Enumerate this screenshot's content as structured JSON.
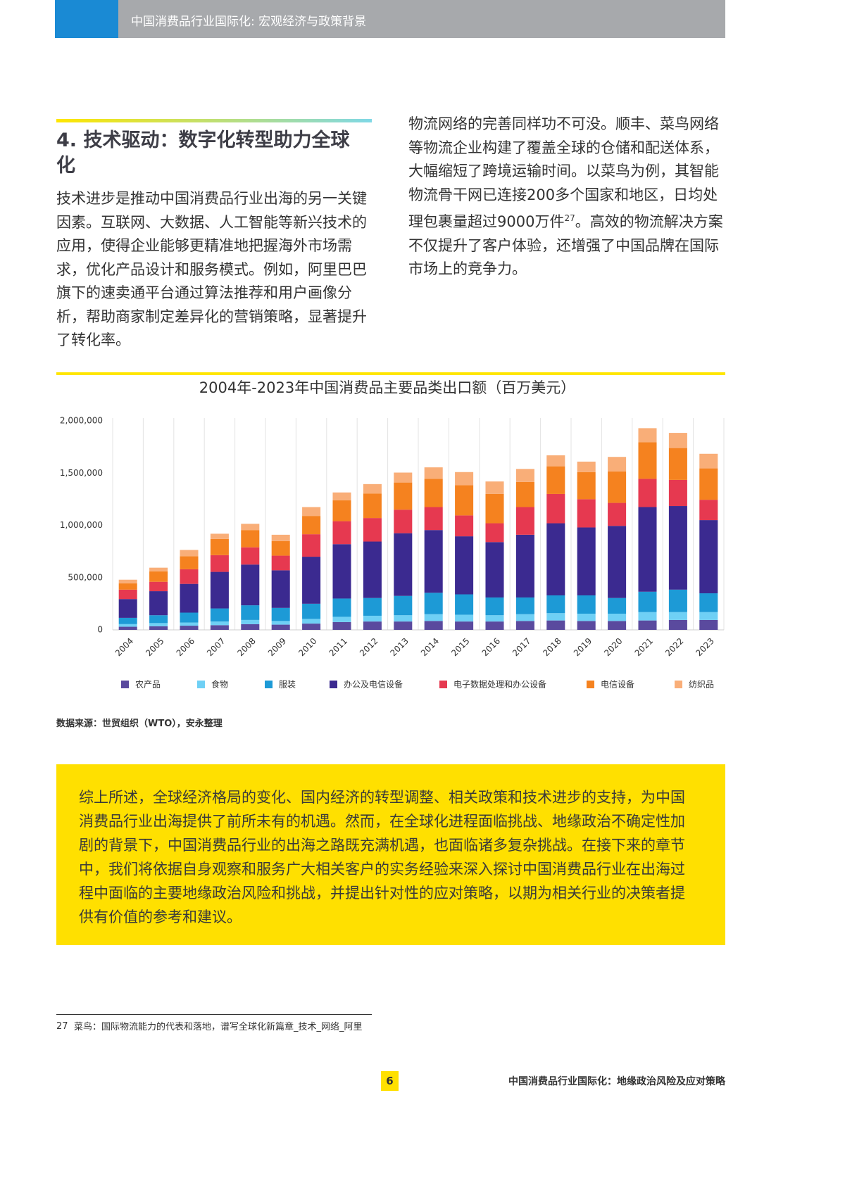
{
  "header": {
    "title": "中国消费品行业国际化: 宏观经济与政策背景"
  },
  "section": {
    "heading": "4. 技术驱动：数字化转型助力全球化",
    "left_paragraph": "技术进步是推动中国消费品行业出海的另一关键因素。互联网、大数据、人工智能等新兴技术的应用，使得企业能够更精准地把握海外市场需求，优化产品设计和服务模式。例如，阿里巴巴旗下的速卖通平台通过算法推荐和用户画像分析，帮助商家制定差异化的营销策略，显著提升了转化率。",
    "right_paragraph": {
      "before": "物流网络的完善同样功不可没。顺丰、菜鸟网络等物流企业构建了覆盖全球的仓储和配送体系，大幅缩短了跨境运输时间。以菜鸟为例，其智能物流骨干网已连接200多个国家和地区，日均处理包裹量超过9000万件",
      "footnote_ref": "27",
      "after": "。高效的物流解决方案不仅提升了客户体验，还增强了中国品牌在国际市场上的竞争力。"
    }
  },
  "chart_data": {
    "type": "stacked-bar",
    "title": "2004年-2023年中国消费品主要品类出口额（百万美元）",
    "categories": [
      "2004",
      "2005",
      "2006",
      "2007",
      "2008",
      "2009",
      "2010",
      "2011",
      "2012",
      "2013",
      "2014",
      "2015",
      "2016",
      "2017",
      "2018",
      "2019",
      "2020",
      "2021",
      "2022",
      "2023"
    ],
    "series": [
      {
        "name": "农产品",
        "color": "#5a4a9e",
        "values": [
          30000,
          35000,
          40000,
          45000,
          55000,
          50000,
          60000,
          75000,
          80000,
          80000,
          85000,
          80000,
          80000,
          85000,
          90000,
          85000,
          85000,
          90000,
          95000,
          95000
        ]
      },
      {
        "name": "食物",
        "color": "#6fd0f5",
        "values": [
          25000,
          30000,
          30000,
          35000,
          40000,
          35000,
          45000,
          50000,
          55000,
          60000,
          65000,
          65000,
          60000,
          65000,
          70000,
          70000,
          70000,
          80000,
          75000,
          75000
        ]
      },
      {
        "name": "服装",
        "color": "#1d9ad6",
        "values": [
          60000,
          75000,
          95000,
          125000,
          140000,
          125000,
          145000,
          175000,
          170000,
          185000,
          205000,
          195000,
          170000,
          160000,
          170000,
          175000,
          150000,
          195000,
          215000,
          180000
        ]
      },
      {
        "name": "办公及电信设备",
        "color": "#3b2a90",
        "values": [
          180000,
          230000,
          275000,
          350000,
          390000,
          360000,
          450000,
          520000,
          540000,
          600000,
          600000,
          555000,
          530000,
          600000,
          690000,
          650000,
          690000,
          810000,
          800000,
          700000
        ]
      },
      {
        "name": "电子数据处理和办公设备",
        "color": "#e63950",
        "values": [
          90000,
          90000,
          140000,
          160000,
          165000,
          140000,
          215000,
          220000,
          225000,
          225000,
          220000,
          200000,
          180000,
          265000,
          280000,
          270000,
          220000,
          270000,
          250000,
          195000
        ]
      },
      {
        "name": "电信设备",
        "color": "#f5821f",
        "values": [
          60000,
          100000,
          125000,
          155000,
          165000,
          140000,
          175000,
          200000,
          235000,
          260000,
          270000,
          290000,
          280000,
          240000,
          265000,
          260000,
          300000,
          350000,
          305000,
          300000
        ]
      },
      {
        "name": "纺织品",
        "color": "#f9ae78",
        "values": [
          35000,
          35000,
          60000,
          50000,
          60000,
          60000,
          85000,
          75000,
          90000,
          95000,
          110000,
          125000,
          120000,
          125000,
          105000,
          100000,
          140000,
          135000,
          145000,
          140000
        ]
      }
    ],
    "ylim": [
      0,
      2000000
    ],
    "yticks": [
      0,
      {
        "value": 500000,
        "label": "500,000"
      },
      {
        "value": 1000000,
        "label": "1,000,000"
      },
      {
        "value": 1500000,
        "label": "1,500,000"
      },
      {
        "value": 2000000,
        "label": "2,000,000"
      }
    ],
    "source": "数据来源：世贸组织（WTO），安永整理"
  },
  "summary": {
    "text": "综上所述，全球经济格局的变化、国内经济的转型调整、相关政策和技术进步的支持，为中国消费品行业出海提供了前所未有的机遇。然而，在全球化进程面临挑战、地缘政治不确定性加剧的背景下，中国消费品行业的出海之路既充满机遇，也面临诸多复杂挑战。在接下来的章节中，我们将依据自身观察和服务广大相关客户的实务经验来深入探讨中国消费品行业在出海过程中面临的主要地缘政治风险和挑战，并提出针对性的应对策略，以期为相关行业的决策者提供有价值的参考和建议。"
  },
  "footnote": {
    "number": "27",
    "text": "菜鸟：国际物流能力的代表和落地，谱写全球化新篇章_技术_网络_阿里"
  },
  "footer": {
    "page": "6",
    "title": "中国消费品行业国际化：地缘政治风险及应对策略"
  }
}
